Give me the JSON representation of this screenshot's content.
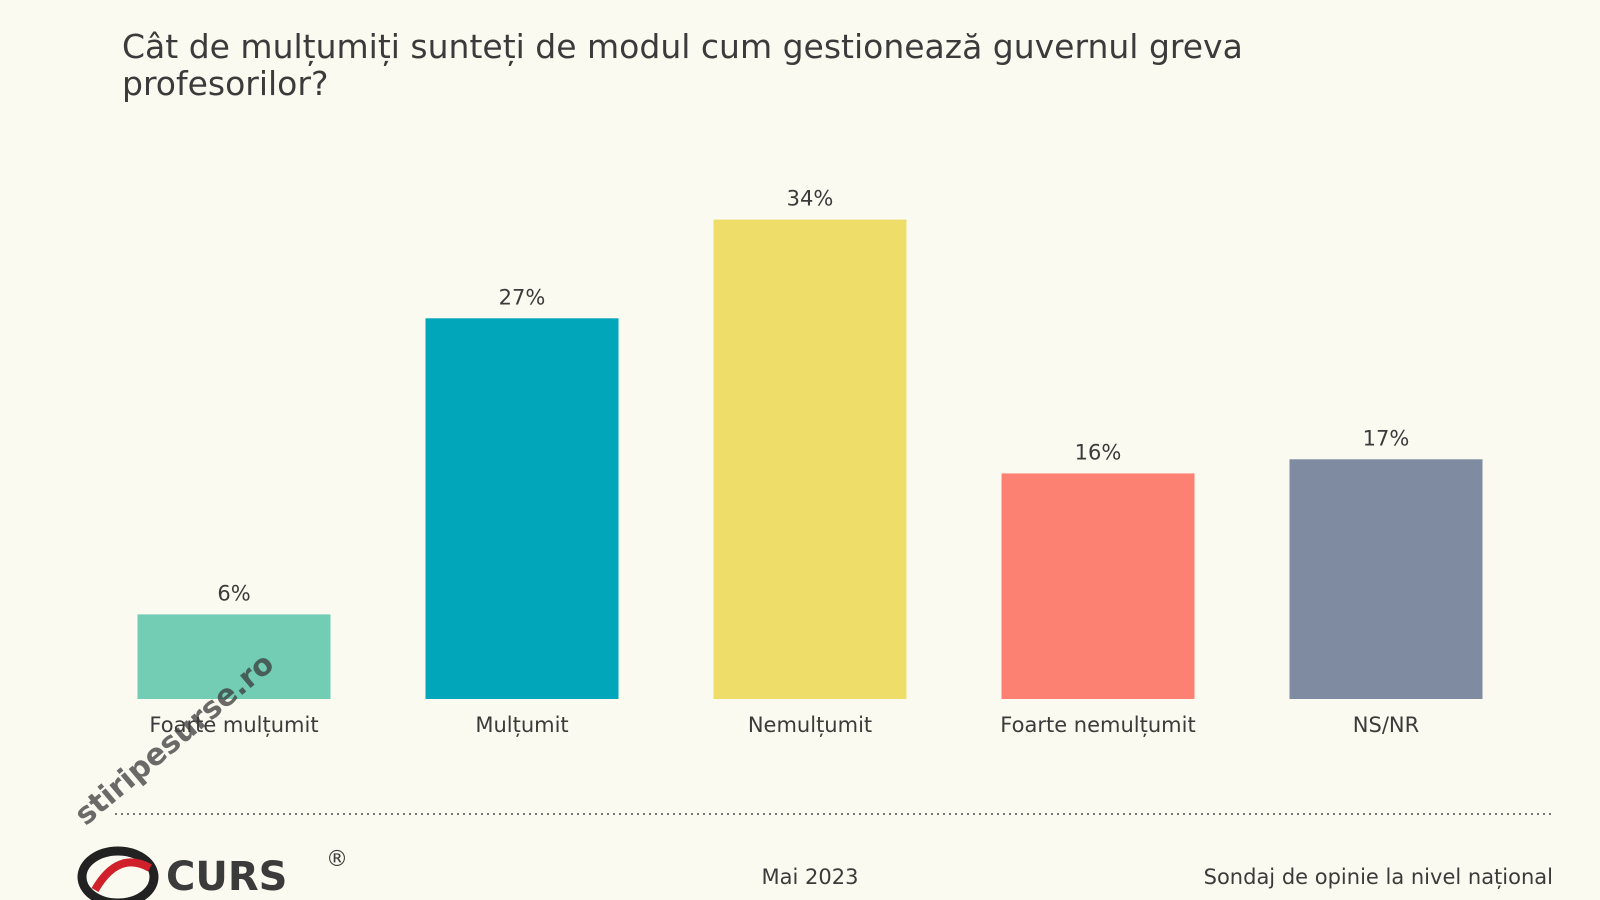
{
  "chart_data": {
    "type": "bar",
    "title": "Cât de mulțumiți sunteți de modul cum gestionează guvernul greva profesorilor?",
    "categories": [
      "Foarte mulțumit",
      "Mulțumit",
      "Nemulțumit",
      "Foarte nemulțumit",
      "NS/NR"
    ],
    "values": [
      6,
      27,
      34,
      16,
      17
    ],
    "value_labels": [
      "6%",
      "27%",
      "34%",
      "16%",
      "17%"
    ],
    "colors": [
      "#72cdb4",
      "#02a6bb",
      "#efdd6a",
      "#fd8173",
      "#7e8ba0"
    ],
    "footer": {
      "logo": "CURS",
      "registered": "®",
      "date": "Mai 2023",
      "note": "Sondaj de opinie la nivel național"
    },
    "watermark": "stiripesurse.ro"
  }
}
